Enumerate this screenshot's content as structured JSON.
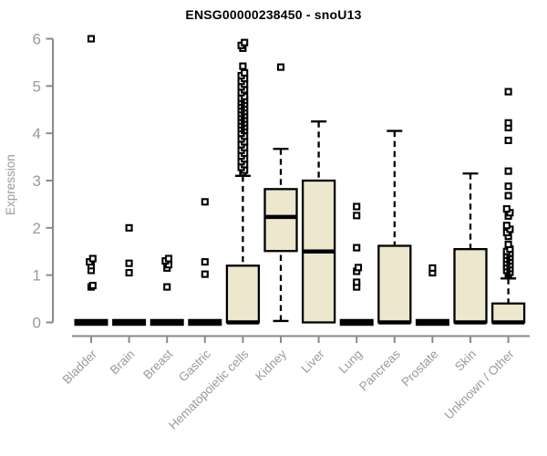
{
  "title": "ENSG00000238450 - snoU13",
  "chart_data": {
    "type": "boxplot",
    "title": "ENSG00000238450 - snoU13",
    "xlabel": "",
    "ylabel": "Expression",
    "ylim": [
      0,
      6
    ],
    "yticks": [
      0,
      1,
      2,
      3,
      4,
      5,
      6
    ],
    "grid": false,
    "legend": null,
    "categories": [
      "Bladder",
      "Brain",
      "Breast",
      "Gastric",
      "Hematopoietic cells",
      "Kidney",
      "Liver",
      "Lung",
      "Pancreas",
      "Prostate",
      "Skin",
      "Unknown / Other"
    ],
    "boxes": [
      {
        "category": "Bladder",
        "q1": 0,
        "median": 0,
        "q3": 0,
        "whisker_low": 0,
        "whisker_high": 0,
        "outliers": [
          0.75,
          0.78,
          1.1,
          1.2,
          1.28,
          1.35,
          6.0
        ]
      },
      {
        "category": "Brain",
        "q1": 0,
        "median": 0,
        "q3": 0,
        "whisker_low": 0,
        "whisker_high": 0,
        "outliers": [
          1.05,
          1.25,
          2.0
        ]
      },
      {
        "category": "Breast",
        "q1": 0,
        "median": 0,
        "q3": 0,
        "whisker_low": 0,
        "whisker_high": 0,
        "outliers": [
          0.75,
          1.15,
          1.22,
          1.3,
          1.35
        ]
      },
      {
        "category": "Gastric",
        "q1": 0,
        "median": 0,
        "q3": 0,
        "whisker_low": 0,
        "whisker_high": 0,
        "outliers": [
          1.02,
          1.28,
          2.55
        ]
      },
      {
        "category": "Hematopoietic cells",
        "q1": 0,
        "median": 0,
        "q3": 1.2,
        "whisker_low": 0,
        "whisker_high": 3.1,
        "outliers": [
          3.17,
          3.22,
          3.28,
          3.34,
          3.4,
          3.46,
          3.52,
          3.58,
          3.64,
          3.7,
          3.76,
          3.82,
          3.88,
          3.94,
          4.0,
          4.06,
          4.1,
          4.14,
          4.18,
          4.22,
          4.26,
          4.3,
          4.34,
          4.38,
          4.42,
          4.46,
          4.5,
          4.54,
          4.58,
          4.62,
          4.66,
          4.7,
          4.74,
          4.78,
          4.86,
          4.92,
          4.98,
          5.04,
          5.1,
          5.16,
          5.22,
          5.28,
          5.42,
          5.8,
          5.86,
          5.92
        ]
      },
      {
        "category": "Kidney",
        "q1": 1.51,
        "median": 2.23,
        "q3": 2.82,
        "whisker_low": 0.03,
        "whisker_high": 3.67,
        "outliers": [
          5.4
        ]
      },
      {
        "category": "Liver",
        "q1": 0,
        "median": 1.5,
        "q3": 3.0,
        "whisker_low": 0,
        "whisker_high": 4.25,
        "outliers": []
      },
      {
        "category": "Lung",
        "q1": 0,
        "median": 0,
        "q3": 0,
        "whisker_low": 0,
        "whisker_high": 0,
        "outliers": [
          0.75,
          0.85,
          1.08,
          1.16,
          1.58,
          2.26,
          2.45
        ]
      },
      {
        "category": "Pancreas",
        "q1": 0,
        "median": 0,
        "q3": 1.62,
        "whisker_low": 0,
        "whisker_high": 4.05,
        "outliers": []
      },
      {
        "category": "Prostate",
        "q1": 0,
        "median": 0,
        "q3": 0,
        "whisker_low": 0,
        "whisker_high": 0,
        "outliers": [
          1.05,
          1.15
        ]
      },
      {
        "category": "Skin",
        "q1": 0,
        "median": 0,
        "q3": 1.55,
        "whisker_low": 0,
        "whisker_high": 3.15,
        "outliers": []
      },
      {
        "category": "Unknown / Other",
        "q1": 0,
        "median": 0,
        "q3": 0.4,
        "whisker_low": 0,
        "whisker_high": 0.93,
        "outliers": [
          1.02,
          1.06,
          1.1,
          1.14,
          1.18,
          1.22,
          1.26,
          1.3,
          1.34,
          1.38,
          1.42,
          1.46,
          1.5,
          1.55,
          1.65,
          1.82,
          1.9,
          1.97,
          2.05,
          2.25,
          2.32,
          2.4,
          2.68,
          2.88,
          3.2,
          3.85,
          4.12,
          4.22,
          4.88
        ]
      }
    ],
    "colors": {
      "box_fill": "#ECE7CD",
      "box_stroke": "#000000",
      "median": "#000000",
      "outlier_stroke": "#000000",
      "outlier_fill": "#FFFFFF",
      "axis": "#8A8A8A",
      "tick_label": "#9A9A9A",
      "title_color": "#000000",
      "background": "#FFFFFF"
    }
  }
}
